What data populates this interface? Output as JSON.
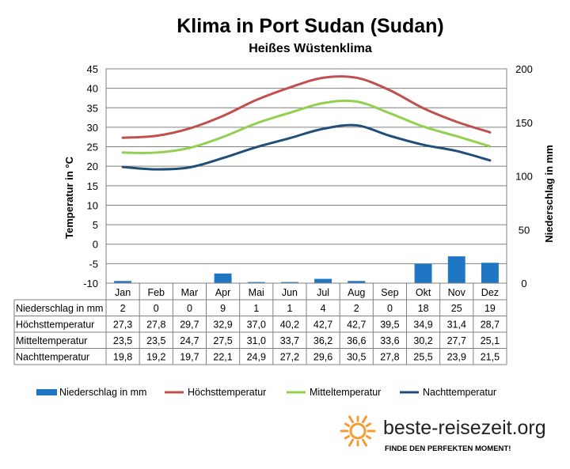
{
  "chart_data": {
    "type": "line",
    "title": "Klima in Port Sudan (Sudan)",
    "subtitle": "Heißes Wüstenklima",
    "ylabel": "Temperatur in °C",
    "y2label": "Niederschlag in mm",
    "ylim": [
      -10,
      45
    ],
    "yticks": [
      -10,
      -5,
      0,
      5,
      10,
      15,
      20,
      25,
      30,
      35,
      40,
      45
    ],
    "y2lim": [
      0,
      200
    ],
    "y2ticks": [
      0,
      50,
      100,
      150,
      200
    ],
    "categories": [
      "Jan",
      "Feb",
      "Mar",
      "Apr",
      "Mai",
      "Jun",
      "Jul",
      "Aug",
      "Sep",
      "Okt",
      "Nov",
      "Dez"
    ],
    "grid": true,
    "legend_position": "bottom",
    "series": [
      {
        "key": "precip",
        "name": "Niederschlag in mm",
        "type": "bar",
        "axis": "right",
        "color": "#1f77c4",
        "values": [
          2,
          0,
          0,
          9,
          1,
          1,
          4,
          2,
          0,
          18,
          25,
          19
        ],
        "labels": [
          "2",
          "0",
          "0",
          "9",
          "1",
          "1",
          "4",
          "2",
          "0",
          "18",
          "25",
          "19"
        ]
      },
      {
        "key": "high",
        "name": "Höchsttemperatur",
        "type": "line",
        "axis": "left",
        "color": "#c0504d",
        "values": [
          27.3,
          27.8,
          29.7,
          32.9,
          37.0,
          40.2,
          42.7,
          42.7,
          39.5,
          34.9,
          31.4,
          28.7
        ],
        "labels": [
          "27,3",
          "27,8",
          "29,7",
          "32,9",
          "37,0",
          "40,2",
          "42,7",
          "42,7",
          "39,5",
          "34,9",
          "31,4",
          "28,7"
        ]
      },
      {
        "key": "mean",
        "name": "Mitteltemperatur",
        "type": "line",
        "axis": "left",
        "color": "#92d050",
        "values": [
          23.5,
          23.5,
          24.7,
          27.5,
          31.0,
          33.7,
          36.2,
          36.6,
          33.6,
          30.2,
          27.7,
          25.1
        ],
        "labels": [
          "23,5",
          "23,5",
          "24,7",
          "27,5",
          "31,0",
          "33,7",
          "36,2",
          "36,6",
          "33,6",
          "30,2",
          "27,7",
          "25,1"
        ]
      },
      {
        "key": "low",
        "name": "Nachttemperatur",
        "type": "line",
        "axis": "left",
        "color": "#1f4e79",
        "values": [
          19.8,
          19.2,
          19.7,
          22.1,
          24.9,
          27.2,
          29.6,
          30.5,
          27.8,
          25.5,
          23.9,
          21.5
        ],
        "labels": [
          "19,8",
          "19,2",
          "19,7",
          "22,1",
          "24,9",
          "27,2",
          "29,6",
          "30,5",
          "27,8",
          "25,5",
          "23,9",
          "21,5"
        ]
      }
    ]
  },
  "branding": {
    "name": "beste-reisezeit.org",
    "slogan": "FINDE DEN PERFEKTEN MOMENT!",
    "icon": "sun-icon",
    "accent_color": "#f39c34"
  }
}
